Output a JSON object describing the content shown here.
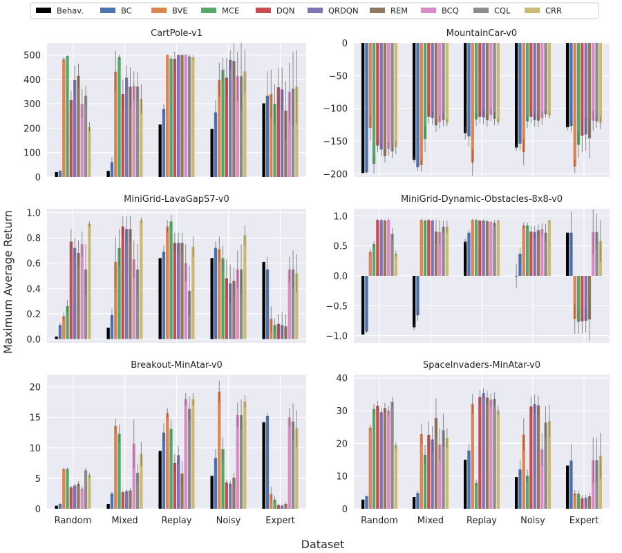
{
  "figure": {
    "ylabel": "Maximum Average Return",
    "xlabel": "Dataset"
  },
  "legend": [
    {
      "name": "Behav.",
      "color": "#000000"
    },
    {
      "name": "BC",
      "color": "#4c72b0"
    },
    {
      "name": "BVE",
      "color": "#dd8452"
    },
    {
      "name": "MCE",
      "color": "#55a868"
    },
    {
      "name": "DQN",
      "color": "#c44e52"
    },
    {
      "name": "QRDQN",
      "color": "#8172b3"
    },
    {
      "name": "REM",
      "color": "#937860"
    },
    {
      "name": "BCQ",
      "color": "#da8bc3"
    },
    {
      "name": "CQL",
      "color": "#8c8c8c"
    },
    {
      "name": "CRR",
      "color": "#ccb974"
    }
  ],
  "chart_data": [
    {
      "type": "bar",
      "title": "CartPole-v1",
      "categories": [
        "Random",
        "Mixed",
        "Replay",
        "Noisy",
        "Expert"
      ],
      "ylim": [
        0,
        550
      ],
      "yticks": [
        0,
        100,
        200,
        300,
        400,
        500
      ],
      "series": [
        {
          "name": "Behav.",
          "values": [
            20,
            25,
            215,
            197,
            302
          ],
          "err": [
            0,
            0,
            0,
            0,
            0
          ]
        },
        {
          "name": "BC",
          "values": [
            25,
            60,
            278,
            265,
            333
          ],
          "err": [
            5,
            20,
            20,
            50,
            100
          ]
        },
        {
          "name": "BVE",
          "values": [
            483,
            432,
            500,
            398,
            340
          ],
          "err": [
            10,
            85,
            2,
            70,
            100
          ]
        },
        {
          "name": "MCE",
          "values": [
            496,
            492,
            485,
            440,
            300
          ],
          "err": [
            3,
            10,
            10,
            50,
            80
          ]
        },
        {
          "name": "DQN",
          "values": [
            315,
            340,
            484,
            407,
            368
          ],
          "err": [
            40,
            60,
            30,
            80,
            80
          ]
        },
        {
          "name": "QRDQN",
          "values": [
            397,
            407,
            500,
            480,
            359
          ],
          "err": [
            60,
            50,
            2,
            40,
            90
          ]
        },
        {
          "name": "REM",
          "values": [
            415,
            370,
            500,
            476,
            272
          ],
          "err": [
            50,
            80,
            2,
            80,
            120
          ]
        },
        {
          "name": "BCQ",
          "values": [
            300,
            373,
            500,
            413,
            349
          ],
          "err": [
            60,
            60,
            2,
            100,
            120
          ]
        },
        {
          "name": "CQL",
          "values": [
            333,
            371,
            494,
            413,
            362
          ],
          "err": [
            40,
            60,
            10,
            140,
            150
          ]
        },
        {
          "name": "CRR",
          "values": [
            205,
            320,
            490,
            433,
            370
          ],
          "err": [
            20,
            60,
            10,
            90,
            150
          ]
        }
      ]
    },
    {
      "type": "bar",
      "title": "MountainCar-v0",
      "categories": [
        "Random",
        "Mixed",
        "Replay",
        "Noisy",
        "Expert"
      ],
      "ylim": [
        -205,
        0
      ],
      "yticks": [
        0,
        -50,
        -100,
        -150,
        -200
      ],
      "series": [
        {
          "name": "Behav.",
          "values": [
            -199,
            -179,
            -138,
            -160,
            -129
          ],
          "err": [
            0,
            5,
            10,
            5,
            5
          ]
        },
        {
          "name": "BC",
          "values": [
            -198,
            -190,
            -143,
            -154,
            -127
          ],
          "err": [
            2,
            5,
            15,
            10,
            10
          ]
        },
        {
          "name": "BVE",
          "values": [
            -130,
            -187,
            -183,
            -167,
            -189
          ],
          "err": [
            20,
            10,
            20,
            20,
            10
          ]
        },
        {
          "name": "MCE",
          "values": [
            -185,
            -147,
            -117,
            -120,
            -156
          ],
          "err": [
            15,
            20,
            10,
            10,
            20
          ]
        },
        {
          "name": "DQN",
          "values": [
            -157,
            -113,
            -113,
            -113,
            -142
          ],
          "err": [
            10,
            10,
            10,
            10,
            25
          ]
        },
        {
          "name": "QRDQN",
          "values": [
            -163,
            -115,
            -114,
            -118,
            -140
          ],
          "err": [
            10,
            10,
            10,
            10,
            25
          ]
        },
        {
          "name": "REM",
          "values": [
            -173,
            -126,
            -118,
            -119,
            -146
          ],
          "err": [
            10,
            10,
            10,
            10,
            30
          ]
        },
        {
          "name": "BCQ",
          "values": [
            -162,
            -121,
            -110,
            -115,
            -119
          ],
          "err": [
            10,
            10,
            10,
            10,
            15
          ]
        },
        {
          "name": "CQL",
          "values": [
            -166,
            -118,
            -116,
            -109,
            -120
          ],
          "err": [
            10,
            10,
            10,
            5,
            10
          ]
        },
        {
          "name": "CRR",
          "values": [
            -160,
            -122,
            -121,
            -111,
            -122
          ],
          "err": [
            10,
            5,
            5,
            5,
            10
          ]
        }
      ]
    },
    {
      "type": "bar",
      "title": "MiniGrid-LavaGapS7-v0",
      "categories": [
        "Random",
        "Mixed",
        "Replay",
        "Noisy",
        "Expert"
      ],
      "ylim": [
        -0.03,
        1.03
      ],
      "yticks": [
        0.0,
        0.2,
        0.4,
        0.6,
        0.8,
        1.0
      ],
      "series": [
        {
          "name": "Behav.",
          "values": [
            0.02,
            0.09,
            0.64,
            0.64,
            0.61
          ],
          "err": [
            0,
            0,
            0,
            0,
            0
          ]
        },
        {
          "name": "BC",
          "values": [
            0.11,
            0.19,
            0.69,
            0.72,
            0.55
          ],
          "err": [
            0.02,
            0.05,
            0.05,
            0.05,
            0.1
          ]
        },
        {
          "name": "BVE",
          "values": [
            0.18,
            0.61,
            0.89,
            0.71,
            0.16
          ],
          "err": [
            0.03,
            0.2,
            0.05,
            0.1,
            0.1
          ]
        },
        {
          "name": "MCE",
          "values": [
            0.26,
            0.72,
            0.93,
            0.64,
            0.11
          ],
          "err": [
            0.05,
            0.15,
            0.05,
            0.1,
            0.05
          ]
        },
        {
          "name": "DQN",
          "values": [
            0.77,
            0.89,
            0.76,
            0.48,
            0.12
          ],
          "err": [
            0.1,
            0.08,
            0.08,
            0.15,
            0.08
          ]
        },
        {
          "name": "QRDQN",
          "values": [
            0.72,
            0.87,
            0.76,
            0.44,
            0.11
          ],
          "err": [
            0.08,
            0.1,
            0.08,
            0.15,
            0.1
          ]
        },
        {
          "name": "REM",
          "values": [
            0.68,
            0.87,
            0.76,
            0.46,
            0.1
          ],
          "err": [
            0.1,
            0.1,
            0.08,
            0.1,
            0.1
          ]
        },
        {
          "name": "BCQ",
          "values": [
            0.75,
            0.63,
            0.6,
            0.55,
            0.55
          ],
          "err": [
            0.1,
            0.15,
            0.15,
            0.15,
            0.1
          ]
        },
        {
          "name": "CQL",
          "values": [
            0.55,
            0.55,
            0.38,
            0.55,
            0.55
          ],
          "err": [
            0.2,
            0.2,
            0.2,
            0.2,
            0.15
          ]
        },
        {
          "name": "CRR",
          "values": [
            0.91,
            0.94,
            0.73,
            0.82,
            0.52
          ],
          "err": [
            0.02,
            0.02,
            0.08,
            0.08,
            0.15
          ]
        }
      ]
    },
    {
      "type": "bar",
      "title": "MiniGrid-Dynamic-Obstacles-8x8-v0",
      "categories": [
        "Random",
        "Mixed",
        "Replay",
        "Noisy",
        "Expert"
      ],
      "ylim": [
        -1.12,
        1.12
      ],
      "yticks": [
        1.0,
        0.5,
        0.0,
        -0.5,
        -1.0
      ],
      "series": [
        {
          "name": "Behav.",
          "values": [
            -0.98,
            -0.86,
            0.57,
            0.0,
            0.72
          ],
          "err": [
            0,
            0.05,
            0.05,
            0.2,
            0
          ]
        },
        {
          "name": "BC",
          "values": [
            -0.93,
            -0.66,
            0.72,
            0.37,
            0.72
          ],
          "err": [
            0.03,
            0.1,
            0.05,
            0.1,
            0.35
          ]
        },
        {
          "name": "BVE",
          "values": [
            0.4,
            0.93,
            0.93,
            0.84,
            -0.72
          ],
          "err": [
            0.05,
            0.02,
            0.02,
            0.05,
            0.25
          ]
        },
        {
          "name": "MCE",
          "values": [
            0.53,
            0.92,
            0.93,
            0.84,
            -0.77
          ],
          "err": [
            0.05,
            0.02,
            0.02,
            0.05,
            0.2
          ]
        },
        {
          "name": "DQN",
          "values": [
            0.93,
            0.93,
            0.92,
            0.74,
            -0.76
          ],
          "err": [
            0.02,
            0.02,
            0.02,
            0.1,
            0.2
          ]
        },
        {
          "name": "QRDQN",
          "values": [
            0.93,
            0.92,
            0.92,
            0.73,
            -0.75
          ],
          "err": [
            0.02,
            0.02,
            0.02,
            0.1,
            0.2
          ]
        },
        {
          "name": "REM",
          "values": [
            0.92,
            0.74,
            0.91,
            0.76,
            -0.73
          ],
          "err": [
            0.02,
            0.2,
            0.02,
            0.1,
            0.35
          ]
        },
        {
          "name": "BCQ",
          "values": [
            0.93,
            0.73,
            0.9,
            0.78,
            0.73
          ],
          "err": [
            0.02,
            0.2,
            0.02,
            0.1,
            0.38
          ]
        },
        {
          "name": "CQL",
          "values": [
            0.7,
            0.82,
            0.88,
            0.72,
            0.73
          ],
          "err": [
            0.1,
            0.1,
            0.05,
            0.15,
            0.3
          ]
        },
        {
          "name": "CRR",
          "values": [
            0.37,
            0.82,
            0.92,
            0.92,
            0.58
          ],
          "err": [
            0.05,
            0.1,
            0.02,
            0.02,
            0.35
          ]
        }
      ]
    },
    {
      "type": "bar",
      "title": "Breakout-MinAtar-v0",
      "categories": [
        "Random",
        "Mixed",
        "Replay",
        "Noisy",
        "Expert"
      ],
      "ylim": [
        0,
        22
      ],
      "yticks": [
        0,
        5,
        10,
        15,
        20
      ],
      "series": [
        {
          "name": "Behav.",
          "values": [
            0.5,
            0.8,
            9.5,
            5.4,
            14.2
          ],
          "err": [
            0,
            0,
            0,
            0,
            0
          ]
        },
        {
          "name": "BC",
          "values": [
            0.8,
            2.5,
            12.5,
            8.3,
            15.2
          ],
          "err": [
            0.1,
            0.3,
            1.5,
            1.5,
            0.5
          ]
        },
        {
          "name": "BVE",
          "values": [
            6.5,
            13.6,
            15.7,
            19.2,
            2.4
          ],
          "err": [
            0.3,
            1.2,
            0.8,
            1.8,
            1.2
          ]
        },
        {
          "name": "MCE",
          "values": [
            6.5,
            12.3,
            13.1,
            9.8,
            1.5
          ],
          "err": [
            0.3,
            1.5,
            1.5,
            2.0,
            0.6
          ]
        },
        {
          "name": "DQN",
          "values": [
            3.5,
            2.7,
            7.5,
            4.3,
            0.6
          ],
          "err": [
            0.3,
            0.3,
            1.5,
            0.5,
            0.2
          ]
        },
        {
          "name": "QRDQN",
          "values": [
            3.8,
            2.9,
            8.8,
            4.1,
            0.5
          ],
          "err": [
            0.3,
            0.3,
            1.5,
            0.5,
            0.2
          ]
        },
        {
          "name": "REM",
          "values": [
            4.1,
            3.0,
            5.8,
            5.1,
            0.8
          ],
          "err": [
            0.4,
            0.4,
            2.0,
            0.8,
            0.3
          ]
        },
        {
          "name": "BCQ",
          "values": [
            3.3,
            10.7,
            18.0,
            15.4,
            15.0
          ],
          "err": [
            0.4,
            4.0,
            1.0,
            2.0,
            1.5
          ]
        },
        {
          "name": "CQL",
          "values": [
            6.3,
            5.9,
            16.4,
            15.4,
            14.3
          ],
          "err": [
            0.4,
            1.5,
            2.0,
            2.5,
            3.0
          ]
        },
        {
          "name": "CRR",
          "values": [
            5.5,
            9.0,
            18.0,
            17.6,
            13.2
          ],
          "err": [
            0.4,
            2.0,
            1.0,
            1.0,
            3.0
          ]
        }
      ]
    },
    {
      "type": "bar",
      "title": "SpaceInvaders-MinAtar-v0",
      "categories": [
        "Random",
        "Mixed",
        "Replay",
        "Noisy",
        "Expert"
      ],
      "ylim": [
        0,
        41
      ],
      "yticks": [
        0,
        10,
        20,
        30,
        40
      ],
      "series": [
        {
          "name": "Behav.",
          "values": [
            2.8,
            3.6,
            15.0,
            9.7,
            13.2
          ],
          "err": [
            0,
            0,
            0,
            0,
            0
          ]
        },
        {
          "name": "BC",
          "values": [
            3.8,
            4.8,
            17.8,
            12.0,
            14.7
          ],
          "err": [
            0.3,
            0.8,
            2.0,
            3.0,
            5.0
          ]
        },
        {
          "name": "BVE",
          "values": [
            24.8,
            22.8,
            32.0,
            22.7,
            4.7
          ],
          "err": [
            1.0,
            3.0,
            3.0,
            5.0,
            1.0
          ]
        },
        {
          "name": "MCE",
          "values": [
            30.5,
            16.5,
            7.9,
            10.1,
            4.6
          ],
          "err": [
            1.5,
            3.0,
            1.0,
            2.0,
            1.0
          ]
        },
        {
          "name": "DQN",
          "values": [
            31.5,
            22.6,
            34.2,
            31.3,
            3.2
          ],
          "err": [
            1.5,
            4.0,
            2.0,
            3.0,
            1.0
          ]
        },
        {
          "name": "QRDQN",
          "values": [
            29.5,
            21.2,
            35.3,
            32.0,
            3.3
          ],
          "err": [
            1.5,
            4.0,
            1.5,
            3.0,
            1.0
          ]
        },
        {
          "name": "REM",
          "values": [
            30.8,
            27.7,
            34.0,
            31.6,
            3.8
          ],
          "err": [
            1.5,
            6.0,
            2.0,
            3.0,
            1.0
          ]
        },
        {
          "name": "BCQ",
          "values": [
            30.0,
            19.7,
            33.3,
            18.1,
            14.8
          ],
          "err": [
            1.5,
            5.0,
            2.0,
            5.0,
            7.0
          ]
        },
        {
          "name": "CQL",
          "values": [
            32.7,
            24.0,
            33.6,
            26.3,
            14.8
          ],
          "err": [
            1.5,
            5.0,
            2.0,
            5.0,
            7.0
          ]
        },
        {
          "name": "CRR",
          "values": [
            19.4,
            21.6,
            30.1,
            26.8,
            16.2
          ],
          "err": [
            1.0,
            3.0,
            1.5,
            5.0,
            7.0
          ]
        }
      ]
    }
  ]
}
